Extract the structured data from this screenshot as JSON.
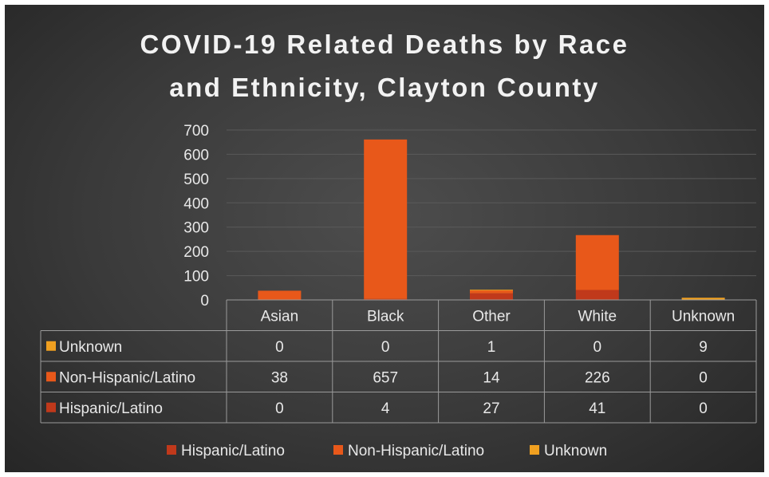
{
  "chart_data": {
    "type": "bar",
    "stacked": true,
    "title_lines": [
      "COVID-19 Related Deaths by Race",
      "and Ethnicity, Clayton County"
    ],
    "categories": [
      "Asian",
      "Black",
      "Other",
      "White",
      "Unknown"
    ],
    "series": [
      {
        "name": "Hispanic/Latino",
        "values": [
          0,
          4,
          27,
          41,
          0
        ],
        "color": "#c0391b"
      },
      {
        "name": "Non-Hispanic/Latino",
        "values": [
          38,
          657,
          14,
          226,
          0
        ],
        "color": "#e8581a"
      },
      {
        "name": "Unknown",
        "values": [
          0,
          0,
          1,
          0,
          9
        ],
        "color": "#f0a020"
      }
    ],
    "ylim": [
      0,
      700
    ],
    "yticks": [
      0,
      100,
      200,
      300,
      400,
      500,
      600,
      700
    ],
    "grid": true,
    "data_table": true,
    "legend_position": "bottom"
  },
  "colors": {
    "background": "#3d3d3d",
    "text": "#e8e8e8",
    "grid": "#5a5a5a",
    "table_border": "#9a9a9a"
  }
}
